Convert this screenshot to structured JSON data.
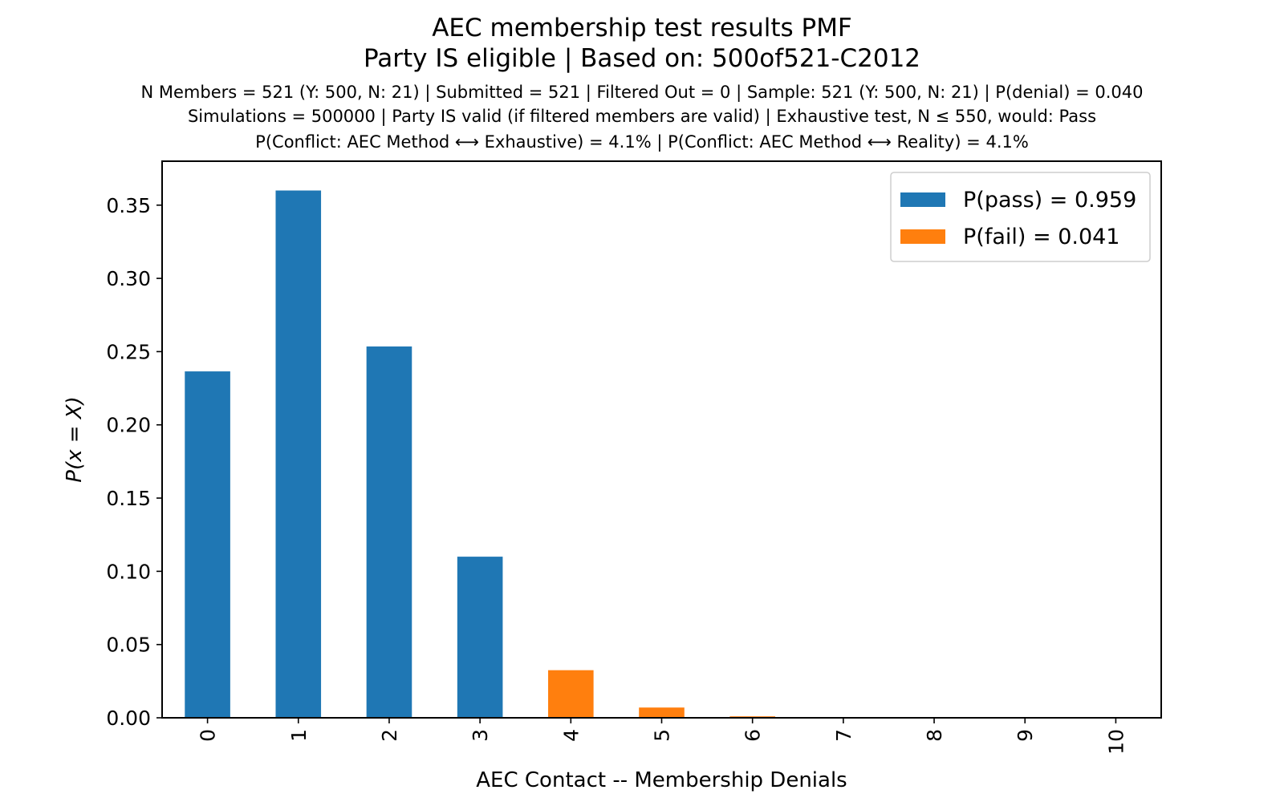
{
  "title_line1": "AEC membership test results PMF",
  "title_line2": "Party IS eligible | Based on: 500of521-C2012",
  "subtitle_line1": "N Members = 521 (Y: 500, N: 21) | Submitted = 521 | Filtered Out = 0 | Sample: 521 (Y: 500, N: 21) | P(denial) = 0.040",
  "subtitle_line2": "Simulations = 500000 | Party IS valid (if filtered members are valid) | Exhaustive test, N ≤ 550, would: Pass",
  "subtitle_line3": "P(Conflict: AEC Method ⟷ Exhaustive) = 4.1% | P(Conflict: AEC Method ⟷ Reality) = 4.1%",
  "colors": {
    "pass": "#1f77b4",
    "fail": "#ff7f0e"
  },
  "chart_data": {
    "type": "bar",
    "xlabel": "AEC Contact -- Membership Denials",
    "ylabel": "P(x = X)",
    "categories": [
      "0",
      "1",
      "2",
      "3",
      "4",
      "5",
      "6",
      "7",
      "8",
      "9",
      "10"
    ],
    "values": [
      0.2365,
      0.36,
      0.2535,
      0.11,
      0.0325,
      0.007,
      0.001,
      0.0001,
      0.0,
      0.0,
      0.0
    ],
    "outcome": [
      "pass",
      "pass",
      "pass",
      "pass",
      "fail",
      "fail",
      "fail",
      "fail",
      "fail",
      "fail",
      "fail"
    ],
    "ylim": [
      0,
      0.38
    ],
    "yticks": [
      "0.00",
      "0.05",
      "0.10",
      "0.15",
      "0.20",
      "0.25",
      "0.30",
      "0.35"
    ],
    "legend": {
      "position": "top-right",
      "entries": [
        {
          "series": "pass",
          "name": "P(pass) = 0.959"
        },
        {
          "series": "fail",
          "name": "P(fail) = 0.041"
        }
      ]
    },
    "grid": false
  }
}
